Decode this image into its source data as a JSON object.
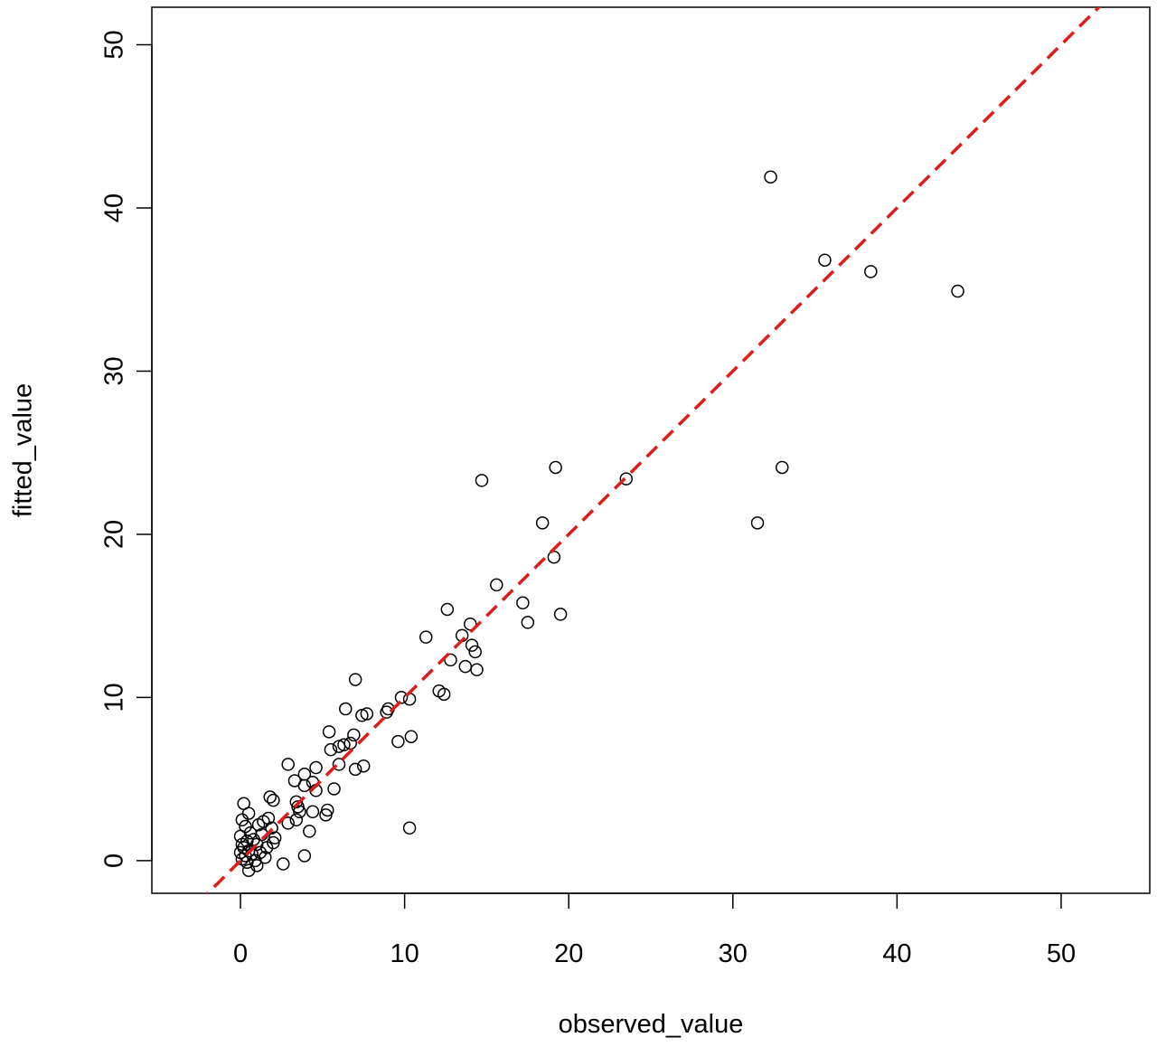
{
  "chart_data": {
    "type": "scatter",
    "title": "",
    "xlabel": "observed_value",
    "ylabel": "fitted_value",
    "xlim": [
      -5.4,
      55.4
    ],
    "ylim": [
      -2.0,
      52.3
    ],
    "x_ticks": [
      0,
      10,
      20,
      30,
      40,
      50
    ],
    "y_ticks": [
      0,
      10,
      20,
      30,
      40,
      50
    ],
    "x_tick_labels": [
      "0",
      "10",
      "20",
      "30",
      "40",
      "50"
    ],
    "y_tick_labels": [
      "0",
      "10",
      "20",
      "30",
      "40",
      "50"
    ],
    "grid": false,
    "legend": "none",
    "marker": "open-circle",
    "reference_line": {
      "slope": 1,
      "intercept": 0,
      "style": "dashed",
      "color": "#dd1c1c"
    },
    "points": [
      {
        "x": 32.3,
        "y": 41.9
      },
      {
        "x": 35.6,
        "y": 36.8
      },
      {
        "x": 38.4,
        "y": 36.1
      },
      {
        "x": 43.7,
        "y": 34.9
      },
      {
        "x": 19.2,
        "y": 24.1
      },
      {
        "x": 33.0,
        "y": 24.1
      },
      {
        "x": 14.7,
        "y": 23.3
      },
      {
        "x": 23.5,
        "y": 23.4
      },
      {
        "x": 18.4,
        "y": 20.7
      },
      {
        "x": 31.5,
        "y": 20.7
      },
      {
        "x": 19.1,
        "y": 18.6
      },
      {
        "x": 15.6,
        "y": 16.9
      },
      {
        "x": 17.2,
        "y": 15.8
      },
      {
        "x": 12.6,
        "y": 15.4
      },
      {
        "x": 19.5,
        "y": 15.1
      },
      {
        "x": 17.5,
        "y": 14.6
      },
      {
        "x": 14.0,
        "y": 14.5
      },
      {
        "x": 13.5,
        "y": 13.8
      },
      {
        "x": 11.3,
        "y": 13.7
      },
      {
        "x": 14.1,
        "y": 13.2
      },
      {
        "x": 14.3,
        "y": 12.8
      },
      {
        "x": 12.8,
        "y": 12.3
      },
      {
        "x": 13.7,
        "y": 11.9
      },
      {
        "x": 14.4,
        "y": 11.7
      },
      {
        "x": 7.0,
        "y": 11.1
      },
      {
        "x": 12.1,
        "y": 10.4
      },
      {
        "x": 12.4,
        "y": 10.2
      },
      {
        "x": 9.8,
        "y": 10.0
      },
      {
        "x": 10.3,
        "y": 9.9
      },
      {
        "x": 6.4,
        "y": 9.3
      },
      {
        "x": 9.0,
        "y": 9.3
      },
      {
        "x": 8.9,
        "y": 9.1
      },
      {
        "x": 7.7,
        "y": 9.0
      },
      {
        "x": 7.4,
        "y": 8.9
      },
      {
        "x": 5.4,
        "y": 7.9
      },
      {
        "x": 6.9,
        "y": 7.7
      },
      {
        "x": 10.4,
        "y": 7.6
      },
      {
        "x": 9.6,
        "y": 7.3
      },
      {
        "x": 6.7,
        "y": 7.2
      },
      {
        "x": 6.3,
        "y": 7.1
      },
      {
        "x": 6.0,
        "y": 7.0
      },
      {
        "x": 5.5,
        "y": 6.8
      },
      {
        "x": 2.9,
        "y": 5.9
      },
      {
        "x": 6.0,
        "y": 5.9
      },
      {
        "x": 7.5,
        "y": 5.8
      },
      {
        "x": 4.6,
        "y": 5.7
      },
      {
        "x": 7.0,
        "y": 5.6
      },
      {
        "x": 3.9,
        "y": 5.3
      },
      {
        "x": 3.3,
        "y": 4.9
      },
      {
        "x": 4.4,
        "y": 4.8
      },
      {
        "x": 3.9,
        "y": 4.6
      },
      {
        "x": 5.7,
        "y": 4.4
      },
      {
        "x": 4.6,
        "y": 4.3
      },
      {
        "x": 1.8,
        "y": 3.9
      },
      {
        "x": 2.0,
        "y": 3.7
      },
      {
        "x": 3.4,
        "y": 3.6
      },
      {
        "x": 0.2,
        "y": 3.5
      },
      {
        "x": 3.5,
        "y": 3.3
      },
      {
        "x": 5.3,
        "y": 3.1
      },
      {
        "x": 4.4,
        "y": 3.0
      },
      {
        "x": 3.6,
        "y": 3.0
      },
      {
        "x": 0.5,
        "y": 2.9
      },
      {
        "x": 5.2,
        "y": 2.8
      },
      {
        "x": 1.7,
        "y": 2.6
      },
      {
        "x": 0.1,
        "y": 2.5
      },
      {
        "x": 3.4,
        "y": 2.5
      },
      {
        "x": 1.4,
        "y": 2.4
      },
      {
        "x": 2.9,
        "y": 2.3
      },
      {
        "x": 1.1,
        "y": 2.2
      },
      {
        "x": 0.3,
        "y": 2.1
      },
      {
        "x": 10.3,
        "y": 2.0
      },
      {
        "x": 1.9,
        "y": 2.0
      },
      {
        "x": 4.2,
        "y": 1.8
      },
      {
        "x": 0.6,
        "y": 1.7
      },
      {
        "x": 1.3,
        "y": 1.6
      },
      {
        "x": 0.0,
        "y": 1.5
      },
      {
        "x": 2.1,
        "y": 1.4
      },
      {
        "x": 0.8,
        "y": 1.3
      },
      {
        "x": 0.4,
        "y": 1.2
      },
      {
        "x": 2.0,
        "y": 1.1
      },
      {
        "x": 0.1,
        "y": 1.0
      },
      {
        "x": 1.0,
        "y": 1.0
      },
      {
        "x": 0.2,
        "y": 0.8
      },
      {
        "x": 1.6,
        "y": 0.8
      },
      {
        "x": 0.5,
        "y": 0.6
      },
      {
        "x": 0.0,
        "y": 0.5
      },
      {
        "x": 1.2,
        "y": 0.5
      },
      {
        "x": 0.7,
        "y": 0.4
      },
      {
        "x": 0.3,
        "y": 0.3
      },
      {
        "x": 3.9,
        "y": 0.3
      },
      {
        "x": 1.5,
        "y": 0.2
      },
      {
        "x": 0.1,
        "y": 0.1
      },
      {
        "x": 0.9,
        "y": 0.0
      },
      {
        "x": 0.4,
        "y": -0.1
      },
      {
        "x": 2.6,
        "y": -0.2
      },
      {
        "x": 1.0,
        "y": -0.3
      },
      {
        "x": 0.5,
        "y": -0.6
      }
    ]
  }
}
